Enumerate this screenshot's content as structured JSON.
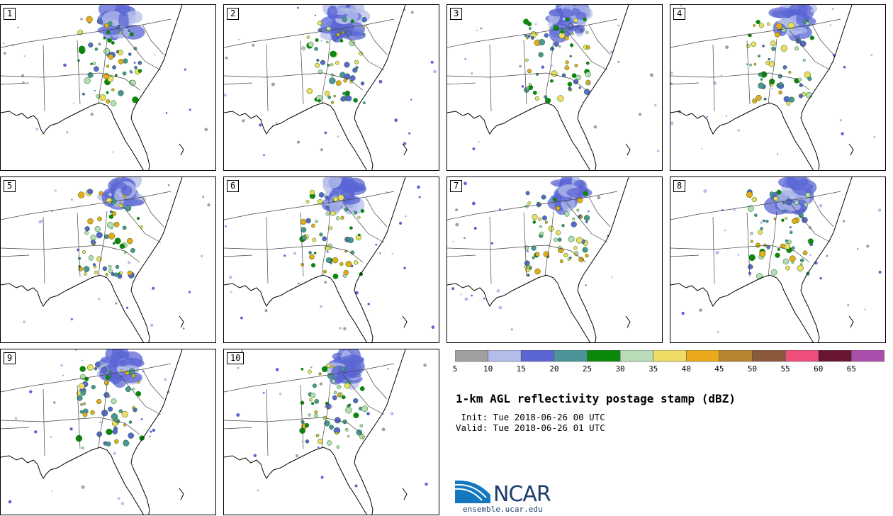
{
  "panels": [
    {
      "label": "1"
    },
    {
      "label": "2"
    },
    {
      "label": "3"
    },
    {
      "label": "4"
    },
    {
      "label": "5"
    },
    {
      "label": "6"
    },
    {
      "label": "7"
    },
    {
      "label": "8"
    },
    {
      "label": "9"
    },
    {
      "label": "10"
    }
  ],
  "colorbar": {
    "ticks": [
      "5",
      "10",
      "15",
      "20",
      "25",
      "30",
      "35",
      "40",
      "45",
      "50",
      "55",
      "60",
      "65"
    ],
    "colors": [
      "#a0a0a0",
      "#b4bde9",
      "#5b65d4",
      "#4b9598",
      "#0a8a0a",
      "#b7dcb7",
      "#f0dc64",
      "#eaa91c",
      "#b6832e",
      "#8a5a3a",
      "#ee4f7a",
      "#6b1535",
      "#aa4fac"
    ]
  },
  "title": "1-km AGL reflectivity postage stamp (dBZ)",
  "init_line": " Init: Tue 2018-06-26 00 UTC",
  "valid_line": "Valid: Tue 2018-06-26 01 UTC",
  "logo": {
    "text": "NCAR",
    "site": "ensemble.ucar.edu",
    "color": "#1d3e6c",
    "accent": "#1478c0"
  }
}
